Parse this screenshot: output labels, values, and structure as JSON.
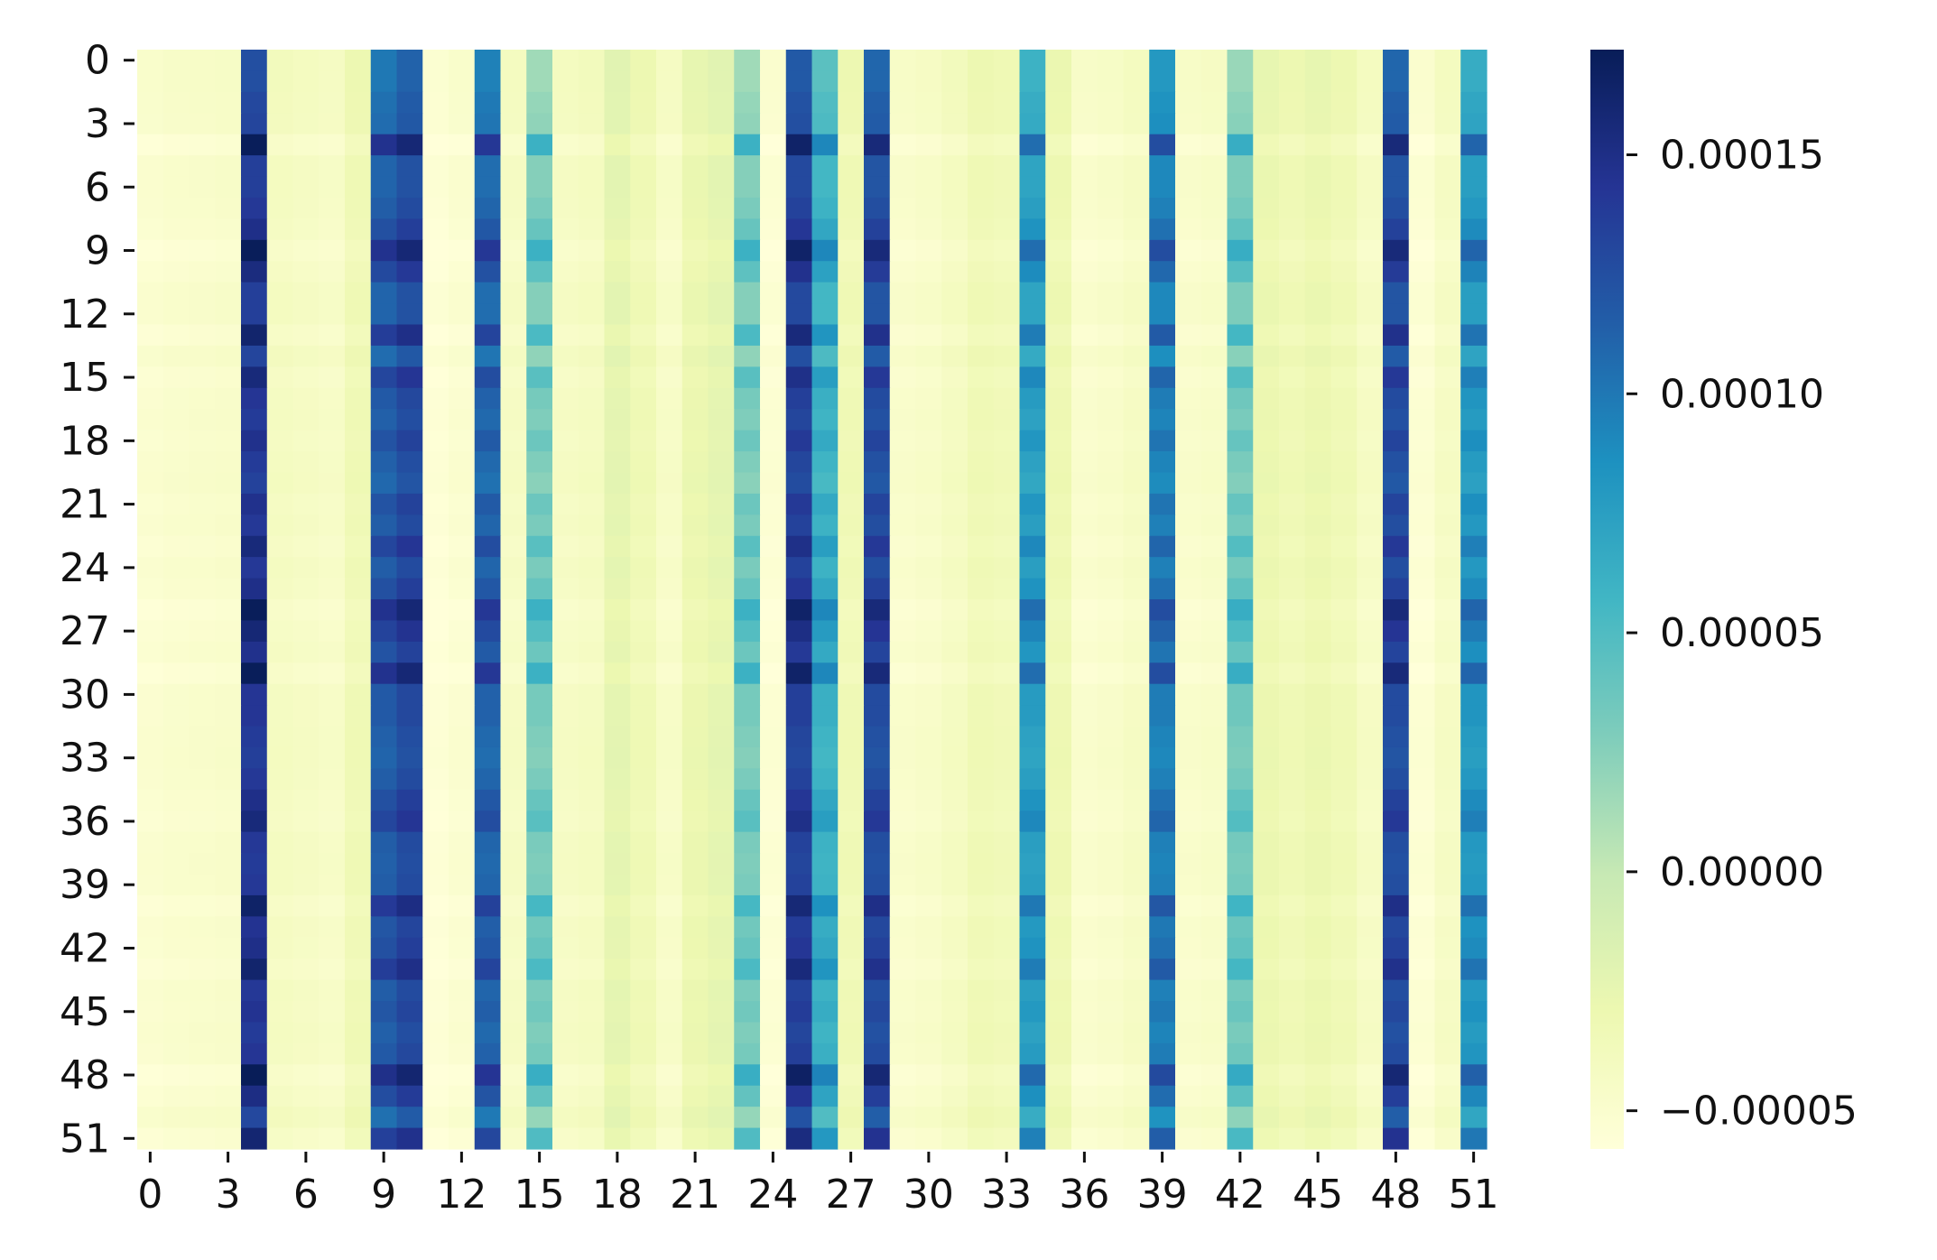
{
  "chart_data": {
    "type": "heatmap",
    "title": "",
    "xlabel": "",
    "ylabel": "",
    "rows": 52,
    "cols": 52,
    "x_tick_labels": [
      "0",
      "3",
      "6",
      "9",
      "12",
      "15",
      "18",
      "21",
      "24",
      "27",
      "30",
      "33",
      "36",
      "39",
      "42",
      "45",
      "48",
      "51"
    ],
    "y_tick_labels": [
      "0",
      "3",
      "6",
      "9",
      "12",
      "15",
      "18",
      "21",
      "24",
      "27",
      "30",
      "33",
      "36",
      "39",
      "42",
      "45",
      "48",
      "51"
    ],
    "colormap": "YlGnBu",
    "colormap_stops": [
      "#ffffd9",
      "#edf8b1",
      "#c7e9b4",
      "#7fcdbb",
      "#41b6c4",
      "#1d91c0",
      "#225ea8",
      "#253494",
      "#081d58"
    ],
    "value_range": [
      -5.8e-05,
      0.000172
    ],
    "colorbar_ticks": [
      -5e-05,
      0.0,
      5e-05,
      0.0001,
      0.00015
    ],
    "colorbar_tick_labels": [
      "−0.00005",
      "0.00000",
      "0.00005",
      "0.00010",
      "0.00015"
    ],
    "column_base_values": [
      -4.8e-05,
      -4.6e-05,
      -4.5e-05,
      -4.4e-05,
      0.000125,
      -3.8e-05,
      -4e-05,
      -4.2e-05,
      -3e-05,
      0.0001,
      0.000112,
      -5.2e-05,
      -4.8e-05,
      9.5e-05,
      -4e-05,
      1.5e-05,
      -4e-05,
      -3.8e-05,
      -2e-05,
      -3e-05,
      -4.2e-05,
      -2.5e-05,
      -2e-05,
      1.5e-05,
      -5e-05,
      0.000118,
      4.5e-05,
      -3e-05,
      0.00011,
      -4.5e-05,
      -4.3e-05,
      -3.8e-05,
      -3e-05,
      -3.2e-05,
      6e-05,
      -2.8e-05,
      -4.6e-05,
      -4.4e-05,
      -4e-05,
      8e-05,
      -4.5e-05,
      -4.3e-05,
      1.8e-05,
      -2.5e-05,
      -3e-05,
      -2.5e-05,
      -3e-05,
      -4e-05,
      0.00011,
      -5e-05,
      -4e-05,
      6.5e-05
    ],
    "row_modulation": [
      0.0,
      0.0,
      0.04,
      0.06,
      0.42,
      0.1,
      0.1,
      0.14,
      0.22,
      0.42,
      0.26,
      0.1,
      0.1,
      0.34,
      0.06,
      0.28,
      0.16,
      0.12,
      0.2,
      0.12,
      0.08,
      0.2,
      0.14,
      0.28,
      0.14,
      0.22,
      0.42,
      0.3,
      0.2,
      0.42,
      0.16,
      0.16,
      0.12,
      0.1,
      0.14,
      0.22,
      0.28,
      0.14,
      0.12,
      0.14,
      0.36,
      0.18,
      0.22,
      0.34,
      0.14,
      0.18,
      0.12,
      0.16,
      0.44,
      0.24,
      0.04,
      0.32
    ]
  }
}
